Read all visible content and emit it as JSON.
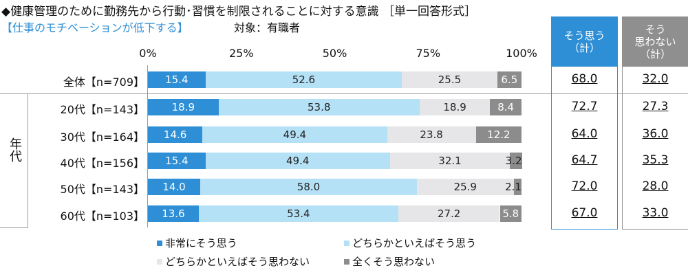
{
  "title": "◆健康管理のために勤務先から行動･習慣を制限されることに対する意識 ［単一回答形式］",
  "subtitle": "【仕事のモチベーションが低下する】",
  "target": "対象：有職者",
  "group_label": "年代",
  "columns": [
    {
      "label_lines": [
        "そう思う",
        "（計）"
      ],
      "color": "#2e8fd6"
    },
    {
      "label_lines": [
        "そう",
        "思わない",
        "（計）"
      ],
      "color": "#8f8f8f"
    }
  ],
  "chart_data": {
    "type": "bar",
    "stacked": true,
    "orientation": "horizontal",
    "xlim": [
      0,
      100
    ],
    "ticks": [
      "0%",
      "25%",
      "50%",
      "75%",
      "100%"
    ],
    "categories": [
      "全体【n=709】",
      "20代【n=143】",
      "30代【n=164】",
      "40代【n=156】",
      "50代【n=143】",
      "60代【n=103】"
    ],
    "series": [
      {
        "name": "非常にそう思う",
        "color": "#2e8fd6",
        "values": [
          15.4,
          18.9,
          14.6,
          15.4,
          14.0,
          13.6
        ]
      },
      {
        "name": "どちらかといえばそう思う",
        "color": "#b5e1f6",
        "values": [
          52.6,
          53.8,
          49.4,
          49.4,
          58.0,
          53.4
        ]
      },
      {
        "name": "どちらかといえばそう思わない",
        "color": "#e6e6e8",
        "values": [
          25.5,
          18.9,
          23.8,
          32.1,
          25.9,
          27.2
        ]
      },
      {
        "name": "全くそう思わない",
        "color": "#8c8c8c",
        "values": [
          6.5,
          8.4,
          12.2,
          3.2,
          2.1,
          5.8
        ]
      }
    ],
    "totals_agree": [
      "68.0",
      "72.7",
      "64.0",
      "64.7",
      "72.0",
      "67.0"
    ],
    "totals_disagree": [
      "32.0",
      "27.3",
      "36.0",
      "35.3",
      "28.0",
      "33.0"
    ],
    "legend": "bottom"
  }
}
